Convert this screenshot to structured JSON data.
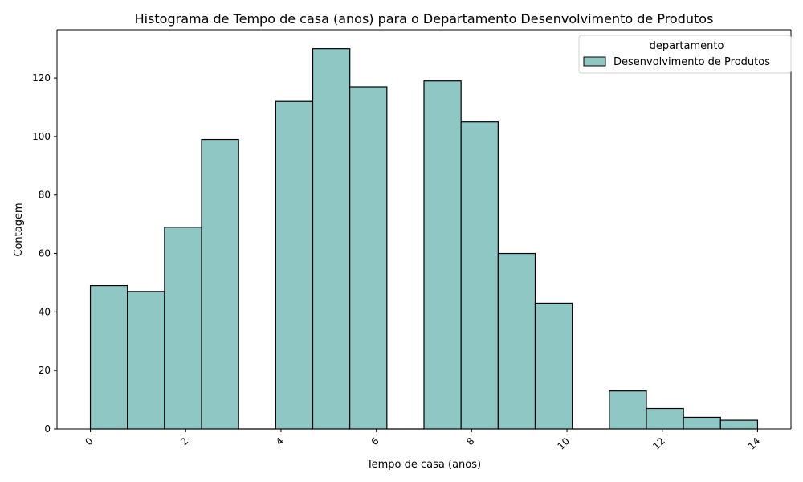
{
  "chart_data": {
    "type": "bar",
    "title": "Histograma de Tempo de casa (anos) para o Departamento Desenvolvimento de Produtos",
    "xlabel": "Tempo de casa (anos)",
    "ylabel": "Contagem",
    "xlim": [
      -0.7,
      14.7
    ],
    "ylim": [
      0,
      136.5
    ],
    "xticks": [
      0,
      2,
      4,
      6,
      8,
      10,
      12,
      14
    ],
    "yticks": [
      0,
      20,
      40,
      60,
      80,
      100,
      120
    ],
    "bin_width": 0.778,
    "bins": [
      {
        "start": 0.0,
        "count": 49
      },
      {
        "start": 0.778,
        "count": 47
      },
      {
        "start": 1.556,
        "count": 69
      },
      {
        "start": 2.333,
        "count": 99
      },
      {
        "start": 3.111,
        "count": 0
      },
      {
        "start": 3.889,
        "count": 112
      },
      {
        "start": 4.667,
        "count": 130
      },
      {
        "start": 5.444,
        "count": 117
      },
      {
        "start": 6.222,
        "count": 0
      },
      {
        "start": 7.0,
        "count": 119
      },
      {
        "start": 7.778,
        "count": 105
      },
      {
        "start": 8.556,
        "count": 60
      },
      {
        "start": 9.333,
        "count": 43
      },
      {
        "start": 10.111,
        "count": 0
      },
      {
        "start": 10.889,
        "count": 13
      },
      {
        "start": 11.667,
        "count": 7
      },
      {
        "start": 12.444,
        "count": 4
      },
      {
        "start": 13.222,
        "count": 3
      }
    ],
    "legend": {
      "title": "departamento",
      "entries": [
        {
          "label": "Desenvolvimento de Produtos",
          "color": "#8fc7c4"
        }
      ],
      "placement": "top-right"
    },
    "bar_color": "#8fc7c4",
    "edge_color": "#000000",
    "grid": false
  }
}
